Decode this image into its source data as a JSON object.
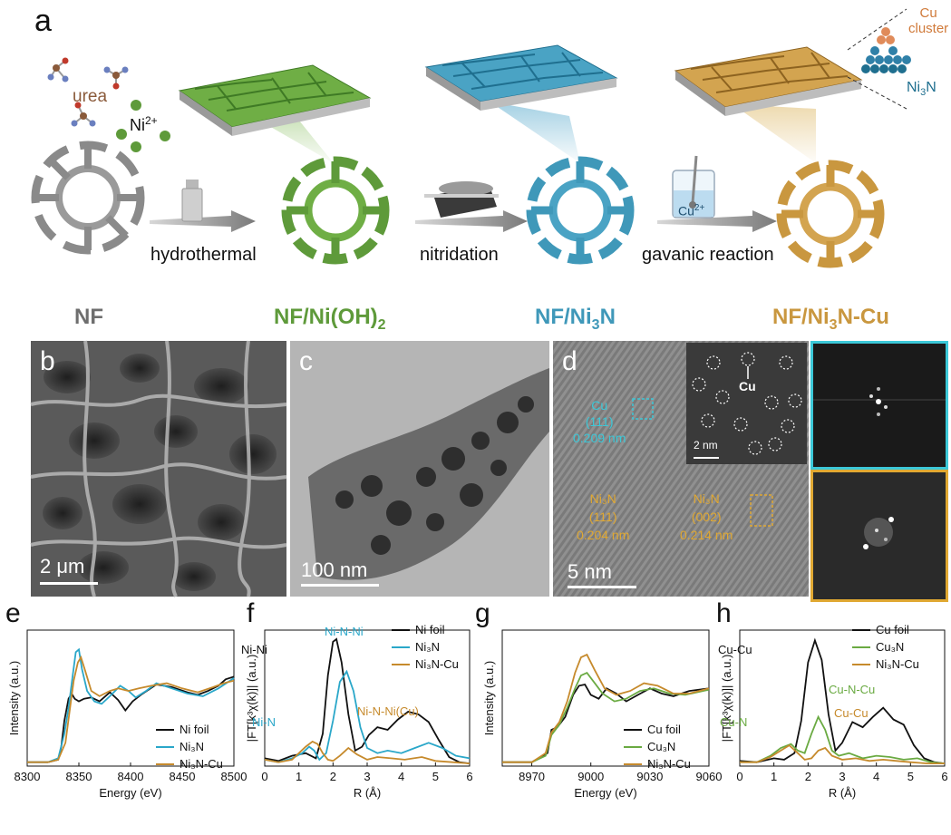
{
  "panel_a": {
    "letter": "a",
    "urea_label": "urea",
    "ni_ion": {
      "base": "Ni",
      "sup": "2+"
    },
    "cu_ion": {
      "base": "Cu",
      "sup": "2+"
    },
    "cluster_label": {
      "line1": "Cu",
      "line2": "cluster"
    },
    "ni3n_side": {
      "a": "Ni",
      "sub": "3",
      "b": "N"
    },
    "steps": [
      "hydrothermal",
      "nitridation",
      "gavanic reaction"
    ],
    "materials": [
      {
        "text": "NF",
        "color": "#6e6e6e"
      },
      {
        "text": "NF/Ni(OH)",
        "sub": "2",
        "color": "#5e9a3a"
      },
      {
        "text": "NF/Ni",
        "sub": "3",
        "tail": "N",
        "color": "#3f98b9"
      },
      {
        "text": "NF/Ni",
        "sub": "3",
        "tail": "N-Cu",
        "color": "#c9973f"
      }
    ],
    "colors": {
      "nf": "#8a8a8a",
      "green": "#5e9a3a",
      "blue": "#3f98b9",
      "gold": "#c9973f"
    }
  },
  "panel_b": {
    "letter": "b",
    "scale": "2 μm"
  },
  "panel_c": {
    "letter": "c",
    "scale": "100 nm"
  },
  "panel_d": {
    "letter": "d",
    "scale": "5 nm",
    "inset_scale": "2 nm",
    "cu_marker": "Cu",
    "cu_plane": {
      "name": "Cu",
      "hkl": "(111)",
      "d": "0.209 nm"
    },
    "ni3n_plane_1": {
      "name": "Ni₃N",
      "hkl": "(111)",
      "d": "0.204 nm"
    },
    "ni3n_plane_2": {
      "name": "Ni₃N",
      "hkl": "(002)",
      "d": "0.214 nm"
    }
  },
  "chart_data": [
    {
      "id": "e",
      "type": "line",
      "title": "",
      "xlabel": "Energy (eV)",
      "ylabel": "Intensity (a.u.)",
      "xlim": [
        8300,
        8500
      ],
      "xticks": [
        8300,
        8350,
        8400,
        8450,
        8500
      ],
      "series": [
        {
          "name": "Ni foil",
          "color": "#111111",
          "x": [
            8300,
            8320,
            8330,
            8333,
            8336,
            8340,
            8343,
            8346,
            8350,
            8355,
            8362,
            8370,
            8380,
            8388,
            8395,
            8402,
            8410,
            8425,
            8440,
            8455,
            8465,
            8475,
            8485,
            8492,
            8500
          ],
          "y": [
            0.03,
            0.03,
            0.05,
            0.15,
            0.35,
            0.52,
            0.56,
            0.52,
            0.5,
            0.52,
            0.53,
            0.5,
            0.57,
            0.51,
            0.43,
            0.5,
            0.55,
            0.63,
            0.61,
            0.57,
            0.55,
            0.58,
            0.62,
            0.67,
            0.69
          ]
        },
        {
          "name": "Ni₃N",
          "color": "#2aa7c9",
          "x": [
            8300,
            8320,
            8330,
            8336,
            8340,
            8344,
            8347,
            8350,
            8353,
            8358,
            8365,
            8372,
            8380,
            8390,
            8398,
            8405,
            8415,
            8425,
            8440,
            8455,
            8470,
            8485,
            8500
          ],
          "y": [
            0.03,
            0.03,
            0.06,
            0.25,
            0.45,
            0.7,
            0.88,
            0.9,
            0.75,
            0.58,
            0.5,
            0.48,
            0.54,
            0.62,
            0.58,
            0.53,
            0.58,
            0.64,
            0.6,
            0.56,
            0.54,
            0.6,
            0.68
          ]
        },
        {
          "name": "Ni₃N-Cu",
          "color": "#c68a2c",
          "x": [
            8300,
            8320,
            8330,
            8337,
            8341,
            8345,
            8349,
            8352,
            8356,
            8362,
            8370,
            8380,
            8388,
            8398,
            8408,
            8420,
            8435,
            8450,
            8465,
            8480,
            8490,
            8500
          ],
          "y": [
            0.03,
            0.03,
            0.05,
            0.18,
            0.42,
            0.66,
            0.8,
            0.84,
            0.74,
            0.58,
            0.54,
            0.58,
            0.6,
            0.58,
            0.6,
            0.62,
            0.64,
            0.6,
            0.57,
            0.61,
            0.64,
            0.66
          ]
        }
      ]
    },
    {
      "id": "f",
      "type": "line",
      "title": "",
      "xlabel": "R (Å)",
      "ylabel": "|FT[k³χ(k)]| (a.u.)",
      "xlim": [
        0,
        6
      ],
      "xticks": [
        0,
        1,
        2,
        3,
        4,
        5,
        6
      ],
      "annotations": [
        "Ni-Ni",
        "Ni-N-Ni",
        "Ni-N",
        "Ni-N-Ni(Cu)"
      ],
      "series": [
        {
          "name": "Ni foil",
          "color": "#111111",
          "x": [
            0,
            0.4,
            0.8,
            1.2,
            1.5,
            1.7,
            1.85,
            2.0,
            2.1,
            2.25,
            2.45,
            2.65,
            2.85,
            3.05,
            3.3,
            3.6,
            3.9,
            4.2,
            4.5,
            4.8,
            5.1,
            5.4,
            5.7,
            6.0
          ],
          "y": [
            0.06,
            0.04,
            0.08,
            0.1,
            0.06,
            0.25,
            0.7,
            0.96,
            0.98,
            0.8,
            0.4,
            0.12,
            0.15,
            0.24,
            0.3,
            0.28,
            0.36,
            0.42,
            0.4,
            0.34,
            0.2,
            0.07,
            0.03,
            0.02
          ]
        },
        {
          "name": "Ni₃N",
          "color": "#2aa7c9",
          "x": [
            0,
            0.4,
            0.8,
            1.1,
            1.3,
            1.45,
            1.6,
            1.8,
            2.0,
            2.2,
            2.4,
            2.6,
            2.8,
            3.0,
            3.3,
            3.6,
            4.0,
            4.4,
            4.8,
            5.2,
            5.6,
            6.0
          ],
          "y": [
            0.05,
            0.03,
            0.06,
            0.1,
            0.15,
            0.12,
            0.05,
            0.1,
            0.35,
            0.65,
            0.73,
            0.58,
            0.3,
            0.14,
            0.1,
            0.12,
            0.1,
            0.14,
            0.18,
            0.14,
            0.08,
            0.06
          ]
        },
        {
          "name": "Ni₃N-Cu",
          "color": "#c68a2c",
          "x": [
            0,
            0.4,
            0.8,
            1.0,
            1.2,
            1.4,
            1.55,
            1.7,
            1.85,
            2.0,
            2.2,
            2.45,
            2.7,
            3.0,
            3.3,
            3.7,
            4.1,
            4.6,
            5.0,
            5.5,
            6.0
          ],
          "y": [
            0.05,
            0.03,
            0.05,
            0.1,
            0.15,
            0.19,
            0.17,
            0.1,
            0.05,
            0.04,
            0.08,
            0.14,
            0.09,
            0.05,
            0.07,
            0.06,
            0.05,
            0.07,
            0.04,
            0.03,
            0.02
          ]
        }
      ]
    },
    {
      "id": "g",
      "type": "line",
      "title": "",
      "xlabel": "Energy (eV)",
      "ylabel": "Intensity (a.u.)",
      "xlim": [
        8955,
        9060
      ],
      "xticks": [
        8970,
        9000,
        9030,
        9060
      ],
      "series": [
        {
          "name": "Cu foil",
          "color": "#111111",
          "x": [
            8955,
            8970,
            8978,
            8980,
            8983,
            8987,
            8991,
            8994,
            8997,
            9000,
            9004,
            9008,
            9013,
            9018,
            9024,
            9030,
            9036,
            9042,
            9050,
            9060
          ],
          "y": [
            0.03,
            0.03,
            0.1,
            0.28,
            0.3,
            0.38,
            0.55,
            0.62,
            0.63,
            0.55,
            0.52,
            0.6,
            0.56,
            0.5,
            0.55,
            0.6,
            0.56,
            0.54,
            0.58,
            0.6
          ]
        },
        {
          "name": "Cu₃N",
          "color": "#6aaa42",
          "x": [
            8955,
            8970,
            8977,
            8980,
            8984,
            8988,
            8992,
            8995,
            8998,
            9002,
            9006,
            9012,
            9018,
            9025,
            9032,
            9040,
            9048,
            9060
          ],
          "y": [
            0.03,
            0.03,
            0.08,
            0.24,
            0.32,
            0.45,
            0.6,
            0.7,
            0.72,
            0.64,
            0.56,
            0.5,
            0.52,
            0.58,
            0.6,
            0.56,
            0.55,
            0.59
          ]
        },
        {
          "name": "Ni₃N-Cu",
          "color": "#c68a2c",
          "x": [
            8955,
            8970,
            8977,
            8980,
            8984,
            8988,
            8992,
            8995,
            8998,
            9002,
            9007,
            9013,
            9020,
            9027,
            9034,
            9042,
            9050,
            9060
          ],
          "y": [
            0.03,
            0.03,
            0.1,
            0.26,
            0.34,
            0.5,
            0.72,
            0.84,
            0.86,
            0.74,
            0.6,
            0.55,
            0.58,
            0.64,
            0.62,
            0.56,
            0.56,
            0.6
          ]
        }
      ]
    },
    {
      "id": "h",
      "type": "line",
      "title": "",
      "xlabel": "R (Å)",
      "ylabel": "|FT[k³χ(k)]| (a.u.)",
      "xlim": [
        0,
        6
      ],
      "xticks": [
        0,
        1,
        2,
        3,
        4,
        5,
        6
      ],
      "annotations": [
        "Cu-Cu",
        "Cu-N-Cu",
        "Cu-N",
        "Cu-Cu"
      ],
      "series": [
        {
          "name": "Cu foil",
          "color": "#111111",
          "x": [
            0,
            0.5,
            1.0,
            1.3,
            1.6,
            1.8,
            2.0,
            2.2,
            2.4,
            2.6,
            2.8,
            3.0,
            3.3,
            3.6,
            3.9,
            4.2,
            4.5,
            4.8,
            5.1,
            5.4,
            5.7,
            6.0
          ],
          "y": [
            0.04,
            0.03,
            0.06,
            0.05,
            0.1,
            0.35,
            0.8,
            0.97,
            0.82,
            0.4,
            0.12,
            0.18,
            0.34,
            0.3,
            0.38,
            0.45,
            0.36,
            0.32,
            0.16,
            0.06,
            0.03,
            0.02
          ]
        },
        {
          "name": "Cu₃N",
          "color": "#6aaa42",
          "x": [
            0,
            0.5,
            0.9,
            1.2,
            1.5,
            1.7,
            1.9,
            2.1,
            2.3,
            2.5,
            2.7,
            2.9,
            3.2,
            3.6,
            4.0,
            4.4,
            4.8,
            5.2,
            5.6,
            6.0
          ],
          "y": [
            0.03,
            0.03,
            0.08,
            0.14,
            0.17,
            0.12,
            0.1,
            0.25,
            0.38,
            0.28,
            0.12,
            0.08,
            0.1,
            0.06,
            0.08,
            0.07,
            0.05,
            0.06,
            0.03,
            0.02
          ]
        },
        {
          "name": "Ni₃N-Cu",
          "color": "#c68a2c",
          "x": [
            0,
            0.5,
            0.9,
            1.2,
            1.45,
            1.7,
            1.9,
            2.1,
            2.3,
            2.5,
            2.7,
            3.0,
            3.4,
            3.8,
            4.2,
            4.6,
            5.0,
            5.5,
            6.0
          ],
          "y": [
            0.03,
            0.03,
            0.07,
            0.12,
            0.16,
            0.1,
            0.05,
            0.06,
            0.12,
            0.14,
            0.08,
            0.05,
            0.06,
            0.04,
            0.05,
            0.04,
            0.03,
            0.02,
            0.02
          ]
        }
      ]
    }
  ]
}
